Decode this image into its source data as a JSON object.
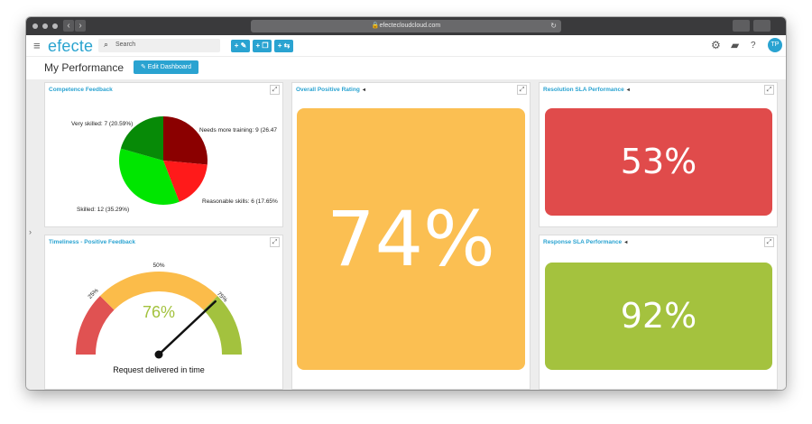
{
  "browser": {
    "url": "efectecloudcloud.com"
  },
  "app": {
    "logo": "efecte",
    "search_placeholder": "Search",
    "add_buttons": [
      "+ ✎",
      "+ ❐",
      "+ ⇆"
    ],
    "user_initials": "TP"
  },
  "page": {
    "title": "My Performance",
    "edit_button": "✎ Edit Dashboard"
  },
  "panels": {
    "competence": {
      "title": "Competence Feedback",
      "chart_data": {
        "type": "pie",
        "title": "",
        "slices": [
          {
            "label": "Needs more training: 9 (26.47",
            "value": 9,
            "color": "#8b0000"
          },
          {
            "label": "Reasonable skills: 6 (17.65%",
            "value": 6,
            "color": "#ff1a1a"
          },
          {
            "label": "Skilled: 12 (35.29%)",
            "value": 12,
            "color": "#00e600"
          },
          {
            "label": "Very skilled: 7 (20.59%)",
            "value": 7,
            "color": "#078a07"
          }
        ]
      }
    },
    "timeliness": {
      "title": "Timeliness - Positive Feedback",
      "gauge_value": "76%",
      "gauge_fraction": 0.76,
      "tick_25": "25%",
      "tick_50": "50%",
      "tick_75": "75%",
      "caption": "Request delivered in time",
      "colors": {
        "low": "#e05252",
        "mid": "#fbbc4a",
        "high": "#a3c23e"
      }
    },
    "overall": {
      "title": "Overall Positive Rating",
      "value": "74%",
      "color": "#fbbf52"
    },
    "resolution": {
      "title": "Resolution SLA Performance",
      "value": "53%",
      "color": "#e04b4b"
    },
    "response": {
      "title": "Response SLA Performance",
      "value": "92%",
      "color": "#a4c23e"
    }
  }
}
